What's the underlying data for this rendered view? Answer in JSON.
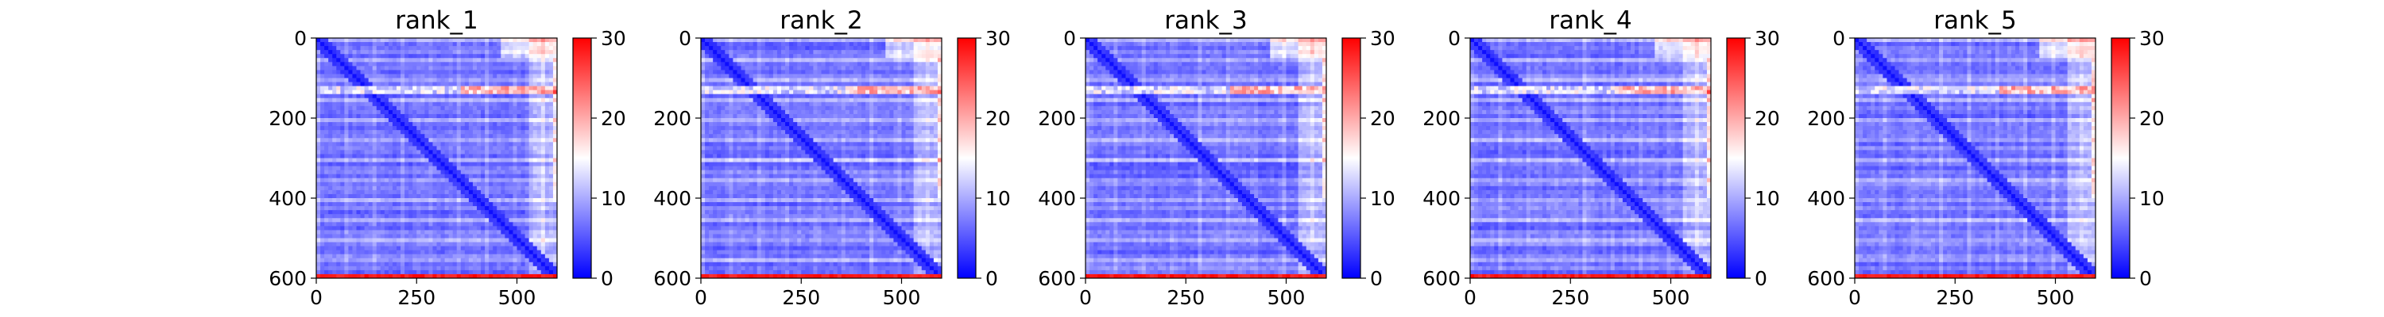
{
  "chart_data": {
    "type": "heatmap",
    "description_units": "predicted aligned error (PAE) style matrices",
    "colormap": {
      "low": "#0000ff",
      "mid": "#ffffff",
      "high": "#ff0000",
      "name": "bwr"
    },
    "value_range": [
      0,
      30
    ],
    "colorbar_ticks": [
      "0",
      "10",
      "20",
      "30"
    ],
    "xlim": [
      0,
      600
    ],
    "ylim": [
      600,
      0
    ],
    "x_ticks": [
      "0",
      "250",
      "500"
    ],
    "y_ticks": [
      "0",
      "200",
      "400",
      "600"
    ],
    "grid": false,
    "panels": [
      {
        "title": "rank_1"
      },
      {
        "title": "rank_2"
      },
      {
        "title": "rank_3"
      },
      {
        "title": "rank_4"
      },
      {
        "title": "rank_5"
      }
    ]
  }
}
